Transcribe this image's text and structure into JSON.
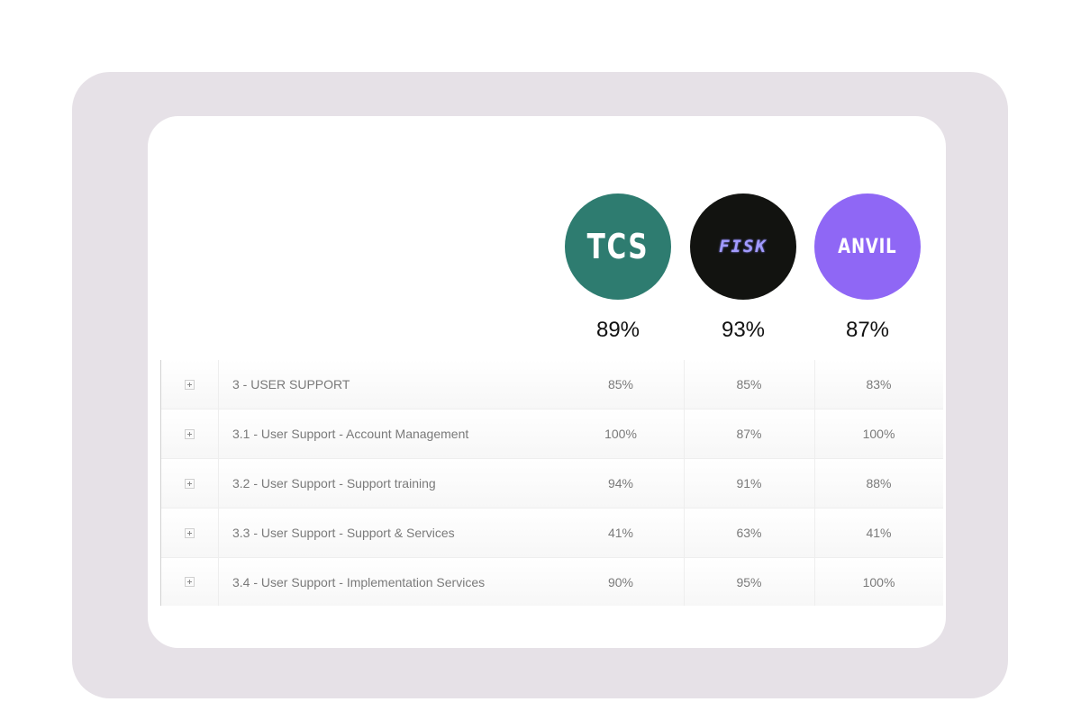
{
  "colors": {
    "outer_frame": "#e6e1e7",
    "tcs_bg": "#2e7c70",
    "fisk_bg": "#121310",
    "fisk_text": "#a29bff",
    "anvil_bg": "#8f67f5"
  },
  "vendors": [
    {
      "logo_text": "TCS",
      "score": "89%"
    },
    {
      "logo_text": "FISK",
      "score": "93%"
    },
    {
      "logo_text": "ANVIL",
      "score": "87%"
    }
  ],
  "rows": [
    {
      "label": "3 - USER SUPPORT",
      "v1": "85%",
      "v2": "85%",
      "v3": "83%"
    },
    {
      "label": "3.1 - User Support - Account Management",
      "v1": "100%",
      "v2": "87%",
      "v3": "100%"
    },
    {
      "label": "3.2 - User Support - Support training",
      "v1": "94%",
      "v2": "91%",
      "v3": "88%"
    },
    {
      "label": "3.3 - User Support - Support & Services",
      "v1": "41%",
      "v2": "63%",
      "v3": "41%"
    },
    {
      "label": "3.4 - User Support - Implementation Services",
      "v1": "90%",
      "v2": "95%",
      "v3": "100%"
    }
  ]
}
